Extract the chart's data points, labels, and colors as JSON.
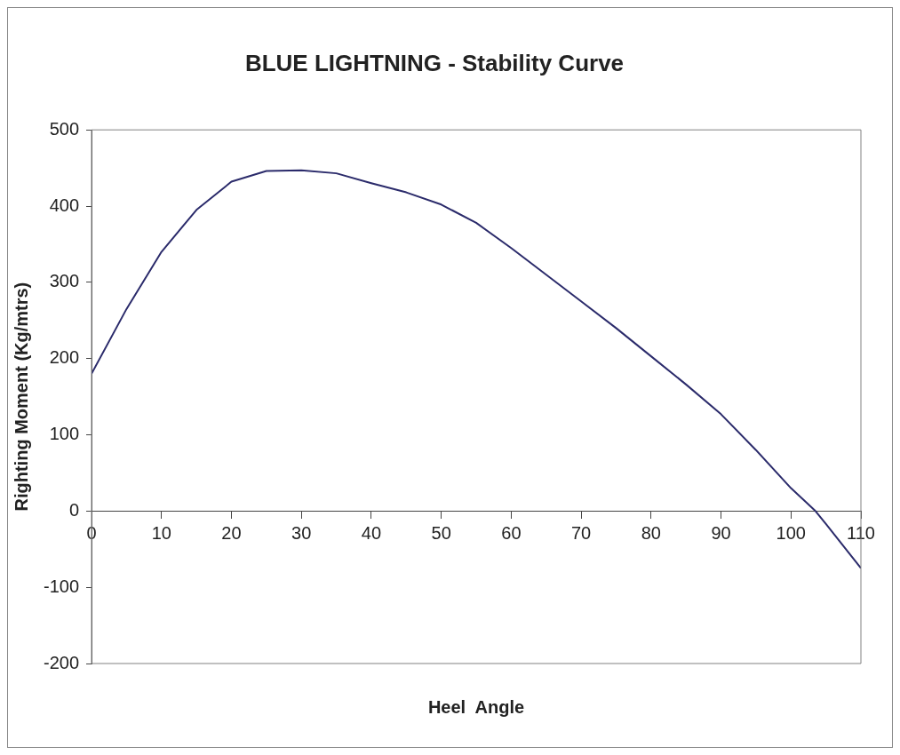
{
  "chart_data": {
    "type": "line",
    "title": "BLUE LIGHTNING - Stability Curve",
    "xlabel": "Heel  Angle",
    "ylabel": "Righting Moment (Kg/mtrs)",
    "x": [
      0,
      5,
      10,
      15,
      20,
      25,
      30,
      35,
      40,
      45,
      50,
      55,
      60,
      65,
      70,
      75,
      80,
      85,
      90,
      95,
      100,
      103.5,
      105,
      110
    ],
    "series": [
      {
        "color": "#2b2b6b",
        "values": [
          180,
          265,
          340,
          395,
          432,
          446,
          447,
          443,
          430,
          418,
          402,
          378,
          345,
          310,
          275,
          240,
          203,
          166,
          127,
          80,
          30,
          0,
          -17,
          -75
        ]
      }
    ],
    "xlim": [
      0,
      110
    ],
    "xticks": [
      0,
      10,
      20,
      30,
      40,
      50,
      60,
      70,
      80,
      90,
      100,
      110
    ],
    "ylim": [
      -200,
      500
    ],
    "yticks": [
      -200,
      -100,
      0,
      100,
      200,
      300,
      400,
      500
    ],
    "legend": false,
    "marker": "none",
    "line_style": "solid"
  }
}
